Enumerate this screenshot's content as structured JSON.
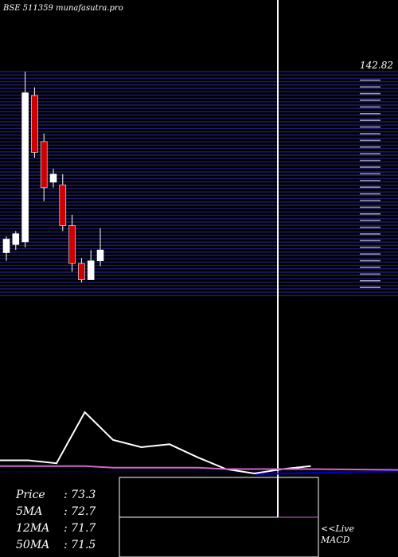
{
  "header": {
    "title": "BSE 511359 munafasutra.pro"
  },
  "stats": {
    "price_label": "Price",
    "price": "73.3",
    "ma5_label": "5MA",
    "ma5": "72.7",
    "ma12_label": "12MA",
    "ma12": "71.7",
    "ma50_label": "50MA",
    "ma50": "71.5"
  },
  "macd_link": {
    "line1": "<<Live",
    "line2": "MACD"
  },
  "colors": {
    "background": "#000000",
    "grid": "#1c1c6e",
    "bull": "#ffffff",
    "bear": "#cc0000",
    "indicator": "#ffffff",
    "signal": "#cc66cc",
    "baseline": "#0000cc"
  },
  "chart_data": [
    {
      "type": "candlestick",
      "title": "BSE 511359 munafasutra.pro",
      "y_max_label": "142.82",
      "candles": [
        {
          "open": 76,
          "high": 82,
          "low": 73,
          "close": 81
        },
        {
          "open": 79,
          "high": 84,
          "low": 77,
          "close": 83
        },
        {
          "open": 80,
          "high": 142.82,
          "low": 78,
          "close": 135
        },
        {
          "open": 134,
          "high": 137,
          "low": 111,
          "close": 113
        },
        {
          "open": 117,
          "high": 120,
          "low": 95,
          "close": 100
        },
        {
          "open": 102,
          "high": 107,
          "low": 100,
          "close": 105
        },
        {
          "open": 101,
          "high": 105,
          "low": 84,
          "close": 86
        },
        {
          "open": 86,
          "high": 90,
          "low": 69,
          "close": 72
        },
        {
          "open": 72,
          "high": 74,
          "low": 65,
          "close": 66
        },
        {
          "open": 66,
          "high": 77,
          "low": 66,
          "close": 73
        },
        {
          "open": 73,
          "high": 85,
          "low": 71,
          "close": 77
        }
      ]
    },
    {
      "type": "line",
      "title": "MACD",
      "series": [
        {
          "values": [
            9,
            9,
            7,
            42,
            23,
            18,
            20,
            11,
            3,
            0,
            3,
            5
          ]
        },
        {
          "values": [
            5,
            5,
            5,
            5,
            4,
            4,
            4,
            4,
            3,
            3,
            3,
            3
          ]
        }
      ]
    }
  ]
}
